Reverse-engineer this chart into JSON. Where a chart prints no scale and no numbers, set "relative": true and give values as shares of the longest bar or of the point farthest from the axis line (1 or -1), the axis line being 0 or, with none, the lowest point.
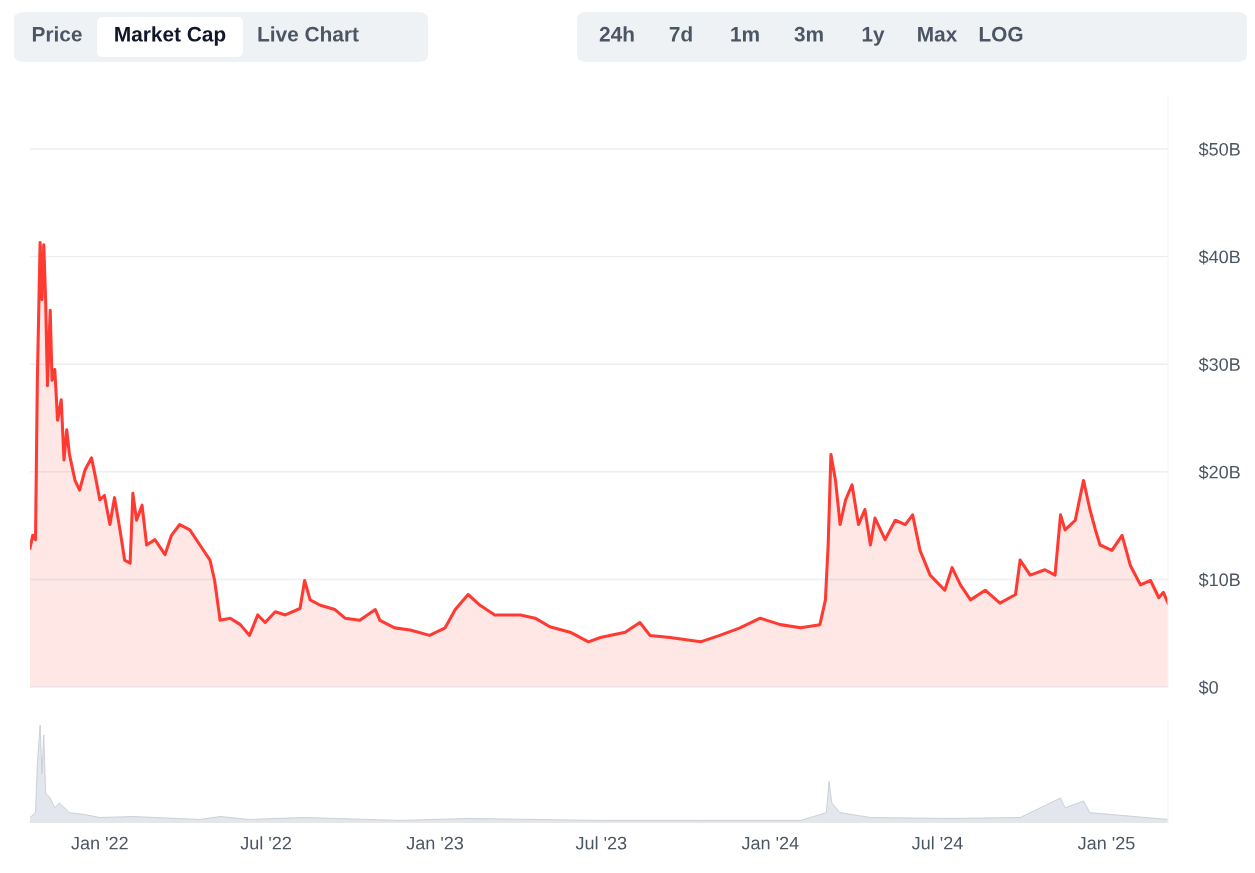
{
  "chart_data": [
    {
      "type": "area",
      "annotations": [
        "Price",
        "Market Cap",
        "Live Chart",
        "24h",
        "7d",
        "1m",
        "3m",
        "1y",
        "Max",
        "LOG"
      ],
      "series": [
        {
          "color": "#ff3a33",
          "x": [
            "2021-10-17",
            "2021-10-20",
            "2021-10-23",
            "2021-10-25",
            "2021-10-28",
            "2021-10-30",
            "2021-11-01",
            "2021-11-03",
            "2021-11-05",
            "2021-11-08",
            "2021-11-10",
            "2021-11-13",
            "2021-11-16",
            "2021-11-20",
            "2021-11-23",
            "2021-11-26",
            "2021-11-29",
            "2021-12-05",
            "2021-12-10",
            "2021-12-16",
            "2021-12-23",
            "2021-12-28",
            "2022-01-01",
            "2022-01-06",
            "2022-01-12",
            "2022-01-17",
            "2022-01-23",
            "2022-01-28",
            "2022-02-03",
            "2022-02-06",
            "2022-02-10",
            "2022-02-16",
            "2022-02-21",
            "2022-03-02",
            "2022-03-13",
            "2022-03-20",
            "2022-03-29",
            "2022-04-09",
            "2022-04-20",
            "2022-05-01",
            "2022-05-06",
            "2022-05-12",
            "2022-05-23",
            "2022-06-03",
            "2022-06-13",
            "2022-06-22",
            "2022-06-30",
            "2022-07-11",
            "2022-07-22",
            "2022-08-07",
            "2022-08-12",
            "2022-08-18",
            "2022-08-29",
            "2022-09-14",
            "2022-09-25",
            "2022-10-11",
            "2022-10-28",
            "2022-11-02",
            "2022-11-18",
            "2022-12-05",
            "2022-12-26",
            "2023-01-12",
            "2023-01-23",
            "2023-02-06",
            "2023-02-19",
            "2023-03-07",
            "2023-04-04",
            "2023-04-20",
            "2023-05-06",
            "2023-05-28",
            "2023-06-17",
            "2023-06-30",
            "2023-07-27",
            "2023-08-12",
            "2023-08-23",
            "2023-09-14",
            "2023-10-17",
            "2023-11-07",
            "2023-11-29",
            "2023-12-21",
            "2024-01-12",
            "2024-02-03",
            "2024-02-24",
            "2024-03-01",
            "2024-03-04",
            "2024-03-07",
            "2024-03-12",
            "2024-03-17",
            "2024-03-23",
            "2024-03-30",
            "2024-04-06",
            "2024-04-13",
            "2024-04-19",
            "2024-04-24",
            "2024-05-05",
            "2024-05-16",
            "2024-05-27",
            "2024-06-04",
            "2024-06-12",
            "2024-06-23",
            "2024-07-09",
            "2024-07-17",
            "2024-07-26",
            "2024-08-06",
            "2024-08-22",
            "2024-09-07",
            "2024-09-24",
            "2024-09-29",
            "2024-10-10",
            "2024-10-26",
            "2024-11-06",
            "2024-11-12",
            "2024-11-17",
            "2024-11-28",
            "2024-12-07",
            "2024-12-14",
            "2024-12-20",
            "2024-12-25",
            "2025-01-07",
            "2025-01-18",
            "2025-01-27",
            "2025-02-07",
            "2025-02-18",
            "2025-02-27",
            "2025-03-04",
            "2025-03-09"
          ],
          "values": [
            12.9,
            14.1,
            13.7,
            28.5,
            41.3,
            36,
            41.1,
            36,
            28,
            35,
            28.5,
            29.5,
            24.8,
            26.7,
            21.1,
            23.9,
            21.6,
            19.2,
            18.3,
            20.2,
            21.3,
            19.2,
            17.4,
            17.8,
            15.1,
            17.6,
            14.6,
            11.8,
            11.5,
            18.0,
            15.5,
            16.9,
            13.2,
            13.7,
            12.3,
            14.1,
            15.1,
            14.6,
            13.2,
            11.8,
            9.9,
            6.2,
            6.4,
            5.8,
            4.8,
            6.7,
            6.0,
            7.0,
            6.7,
            7.3,
            9.9,
            8.1,
            7.6,
            7.2,
            6.4,
            6.2,
            7.2,
            6.2,
            5.5,
            5.3,
            4.8,
            5.5,
            7.2,
            8.6,
            7.6,
            6.7,
            6.7,
            6.4,
            5.6,
            5.1,
            4.2,
            4.6,
            5.1,
            6.0,
            4.8,
            4.6,
            4.2,
            4.8,
            5.5,
            6.4,
            5.8,
            5.5,
            5.8,
            8.1,
            13.2,
            21.6,
            19.2,
            15.1,
            17.4,
            18.8,
            15.1,
            16.5,
            13.2,
            15.7,
            13.7,
            15.5,
            15.1,
            16.0,
            12.7,
            10.4,
            9.0,
            11.1,
            9.5,
            8.1,
            9.0,
            7.8,
            8.6,
            11.8,
            10.4,
            10.9,
            10.4,
            16.0,
            14.6,
            15.5,
            19.2,
            16.5,
            14.6,
            13.2,
            12.7,
            14.1,
            11.3,
            9.5,
            9.9,
            8.3,
            8.8,
            7.8
          ]
        }
      ],
      "xlim": [
        "2021-10-17",
        "2025-03-09"
      ],
      "ylim": [
        0,
        55
      ],
      "yticks": [
        {
          "value": 0,
          "label": "$0"
        },
        {
          "value": 10,
          "label": "$10B"
        },
        {
          "value": 20,
          "label": "$20B"
        },
        {
          "value": 30,
          "label": "$30B"
        },
        {
          "value": 40,
          "label": "$40B"
        },
        {
          "value": 50,
          "label": "$50B"
        }
      ],
      "grid": "y",
      "tick_labels": "y"
    },
    {
      "type": "area",
      "relative": true,
      "tick_labels": "x",
      "series": [
        {
          "color": "#e3e6ec",
          "x": [
            "2021-10-17",
            "2021-10-23",
            "2021-10-25",
            "2021-10-28",
            "2021-10-30",
            "2021-11-01",
            "2021-11-03",
            "2021-11-08",
            "2021-11-13",
            "2021-11-18",
            "2021-11-29",
            "2021-12-16",
            "2022-01-01",
            "2022-02-06",
            "2022-04-20",
            "2022-05-12",
            "2022-06-13",
            "2022-08-12",
            "2022-11-24",
            "2023-02-06",
            "2023-06-30",
            "2023-10-17",
            "2024-02-03",
            "2024-03-02",
            "2024-03-05",
            "2024-03-08",
            "2024-03-17",
            "2024-04-19",
            "2024-07-15",
            "2024-09-29",
            "2024-11-12",
            "2024-11-17",
            "2024-12-07",
            "2024-12-14",
            "2025-01-07",
            "2025-03-09"
          ],
          "values": [
            0.05,
            0.1,
            0.6,
            1.0,
            0.5,
            0.9,
            0.3,
            0.25,
            0.15,
            0.2,
            0.1,
            0.08,
            0.05,
            0.06,
            0.03,
            0.06,
            0.03,
            0.05,
            0.02,
            0.04,
            0.02,
            0.02,
            0.02,
            0.1,
            0.42,
            0.2,
            0.1,
            0.05,
            0.04,
            0.05,
            0.25,
            0.15,
            0.22,
            0.1,
            0.08,
            0.03
          ]
        }
      ],
      "xlim": [
        "2021-10-17",
        "2025-03-09"
      ],
      "xticks": [
        {
          "value": "2022-01-01",
          "label": "Jan '22"
        },
        {
          "value": "2022-07-01",
          "label": "Jul '22"
        },
        {
          "value": "2023-01-01",
          "label": "Jan '23"
        },
        {
          "value": "2023-07-01",
          "label": "Jul '23"
        },
        {
          "value": "2024-01-01",
          "label": "Jan '24"
        },
        {
          "value": "2024-07-01",
          "label": "Jul '24"
        },
        {
          "value": "2025-01-01",
          "label": "Jan '25"
        }
      ]
    }
  ]
}
